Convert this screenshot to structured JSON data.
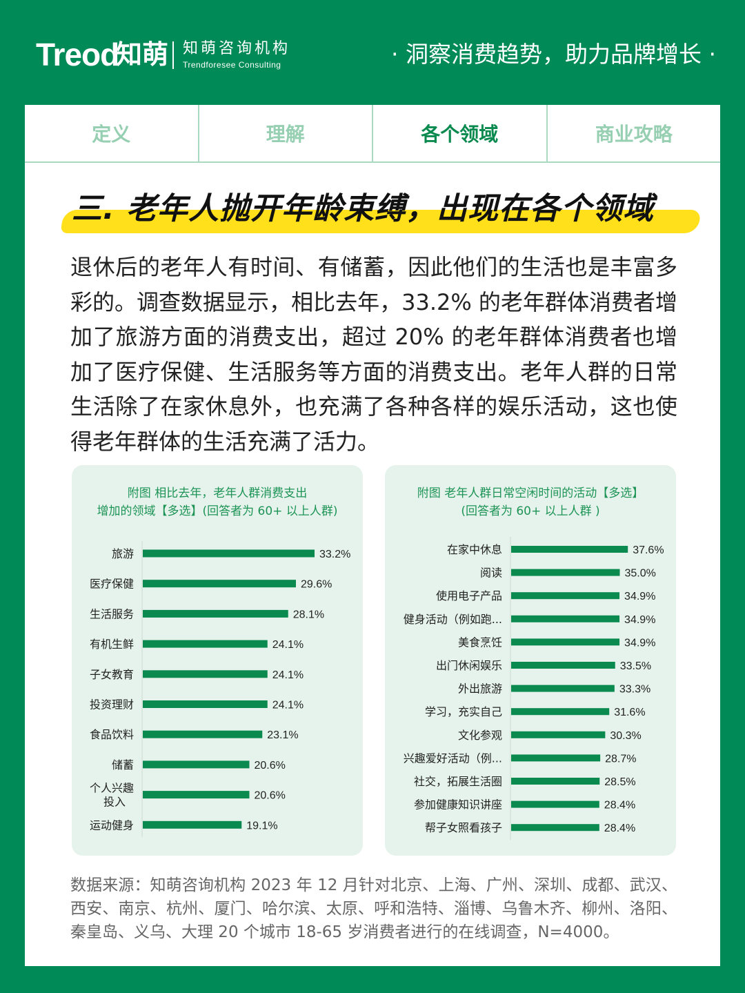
{
  "header": {
    "logo_en": "Treod",
    "logo_cn": "知萌",
    "org_cn": "知萌咨询机构",
    "org_en": "Trendforesee Consulting",
    "slogan": "· 洞察消费趋势，助力品牌增长 ·"
  },
  "tabs": [
    {
      "label": "定义",
      "active": false
    },
    {
      "label": "理解",
      "active": false
    },
    {
      "label": "各个领域",
      "active": true
    },
    {
      "label": "商业攻略",
      "active": false
    }
  ],
  "section_title": "三. 老年人抛开年龄束缚，出现在各个领域",
  "body_text": "退休后的老年人有时间、有储蓄，因此他们的生活也是丰富多彩的。调查数据显示，相比去年，33.2% 的老年群体消费者增加了旅游方面的消费支出，超过 20% 的老年群体消费者也增加了医疗保健、生活服务等方面的消费支出。老年人群的日常生活除了在家休息外，也充满了各种各样的娱乐活动，这也使得老年群体的生活充满了活力。",
  "colors": {
    "brand_green": "#008a57",
    "bar_green": "#0b8a4f",
    "panel_bg": "#e6f3ec",
    "highlight_yellow": "#ffe01a"
  },
  "chart_data": [
    {
      "type": "bar",
      "orientation": "horizontal",
      "title_line1": "附图  相比去年，老年人群消费支出",
      "title_line2": "增加的领域【多选】(回答者为 60+ 以上人群)",
      "categories": [
        "旅游",
        "医疗保健",
        "生活服务",
        "有机生鲜",
        "子女教育",
        "投资理财",
        "食品饮料",
        "储蓄",
        "个人兴趣投入",
        "运动健身"
      ],
      "category_lines": [
        [
          "旅游"
        ],
        [
          "医疗保健"
        ],
        [
          "生活服务"
        ],
        [
          "有机生鲜"
        ],
        [
          "子女教育"
        ],
        [
          "投资理财"
        ],
        [
          "食品饮料"
        ],
        [
          "储蓄"
        ],
        [
          "个人兴趣",
          "投入"
        ],
        [
          "运动健身"
        ]
      ],
      "values": [
        33.2,
        29.6,
        28.1,
        24.1,
        24.1,
        24.1,
        23.1,
        20.6,
        20.6,
        19.1
      ],
      "value_labels": [
        "33.2%",
        "29.6%",
        "28.1%",
        "24.1%",
        "24.1%",
        "24.1%",
        "23.1%",
        "20.6%",
        "20.6%",
        "19.1%"
      ],
      "unit": "%",
      "grid": false
    },
    {
      "type": "bar",
      "orientation": "horizontal",
      "title_line1": "附图  老年人群日常空闲时间的活动【多选】",
      "title_line2": "(回答者为 60+ 以上人群 )",
      "categories": [
        "在家中休息",
        "阅读",
        "使用电子产品",
        "健身活动（例如跑...",
        "美食烹饪",
        "出门休闲娱乐",
        "外出旅游",
        "学习，充实自己",
        "文化参观",
        "兴趣爱好活动（例...",
        "社交，拓展生活圈",
        "参加健康知识讲座",
        "帮子女照看孩子"
      ],
      "category_lines": [
        [
          "在家中休息"
        ],
        [
          "阅读"
        ],
        [
          "使用电子产品"
        ],
        [
          "健身活动（例如跑..."
        ],
        [
          "美食烹饪"
        ],
        [
          "出门休闲娱乐"
        ],
        [
          "外出旅游"
        ],
        [
          "学习，充实自己"
        ],
        [
          "文化参观"
        ],
        [
          "兴趣爱好活动（例..."
        ],
        [
          "社交，拓展生活圈"
        ],
        [
          "参加健康知识讲座"
        ],
        [
          "帮子女照看孩子"
        ]
      ],
      "values": [
        37.6,
        35.0,
        34.9,
        34.9,
        34.9,
        33.5,
        33.3,
        31.6,
        30.3,
        28.7,
        28.5,
        28.4,
        28.4
      ],
      "value_labels": [
        "37.6%",
        "35.0%",
        "34.9%",
        "34.9%",
        "34.9%",
        "33.5%",
        "33.3%",
        "31.6%",
        "30.3%",
        "28.7%",
        "28.5%",
        "28.4%",
        "28.4%"
      ],
      "unit": "%",
      "grid": false
    }
  ],
  "source_text": "数据来源：知萌咨询机构 2023 年 12 月针对北京、上海、广州、深圳、成都、武汉、西安、南京、杭州、厦门、哈尔滨、太原、呼和浩特、淄博、乌鲁木齐、柳州、洛阳、秦皇岛、义乌、大理 20 个城市 18-65 岁消费者进行的在线调查，N=4000。"
}
